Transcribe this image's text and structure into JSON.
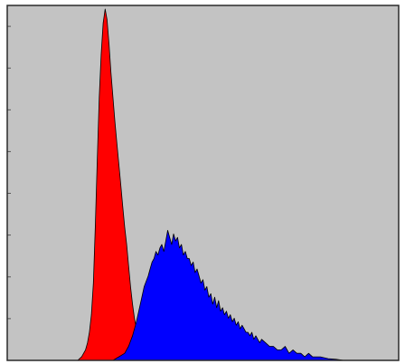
{
  "chart_data": {
    "type": "area",
    "title": "",
    "xlabel": "",
    "ylabel": "",
    "xlim": [
      0,
      100
    ],
    "ylim": [
      0,
      100
    ],
    "grid": false,
    "legend": "none",
    "background_color": "#c3c3c3",
    "frame_color": "#2a2a2a",
    "y_tick_count": 8,
    "series": [
      {
        "color": "#ff0000",
        "x": [
          18.0,
          19.0,
          20.0,
          20.5,
          21.0,
          21.5,
          22.0,
          22.5,
          23.0,
          23.5,
          24.0,
          24.5,
          25.0,
          25.5,
          26.0,
          26.5,
          27.0,
          27.5,
          28.0,
          28.5,
          29.0,
          29.5,
          30.0,
          30.5,
          31.0,
          31.5,
          32.0,
          32.5,
          33.0,
          33.5,
          34.0,
          34.5,
          35.0,
          36.0,
          37.0
        ],
        "y": [
          0,
          1,
          3,
          5,
          8,
          13,
          22,
          38,
          57,
          75,
          87,
          96,
          100,
          97,
          90,
          82,
          75,
          68,
          62,
          56,
          50,
          44,
          38,
          33,
          27,
          21,
          16,
          12,
          9,
          7,
          5,
          3,
          2,
          1,
          0
        ]
      },
      {
        "color": "#0000ff",
        "x": [
          27.0,
          28.5,
          30.0,
          31.0,
          32.0,
          33.0,
          34.0,
          35.0,
          36.0,
          36.5,
          37.0,
          37.5,
          38.0,
          38.5,
          39.0,
          39.5,
          40.0,
          40.5,
          41.0,
          41.5,
          42.0,
          42.5,
          43.0,
          43.5,
          44.0,
          44.5,
          45.0,
          45.5,
          46.0,
          46.5,
          47.0,
          47.5,
          48.0,
          48.5,
          49.0,
          49.5,
          50.0,
          50.5,
          51.0,
          51.5,
          52.0,
          52.5,
          53.0,
          53.5,
          54.0,
          54.5,
          55.0,
          55.5,
          56.0,
          56.5,
          57.0,
          57.5,
          58.0,
          58.5,
          59.0,
          59.5,
          60.0,
          60.5,
          61.0,
          61.5,
          62.0,
          62.5,
          63.0,
          63.5,
          64.0,
          64.5,
          65.0,
          66.0,
          67.0,
          68.0,
          69.0,
          70.0,
          71.0,
          72.0,
          73.0,
          74.0,
          75.0,
          76.0,
          77.0,
          78.0,
          79.0,
          80.0,
          82.0,
          84.0,
          86.0
        ],
        "y": [
          0,
          1,
          2,
          4,
          7,
          11,
          16,
          21,
          24,
          26,
          28,
          29,
          31,
          30,
          32,
          33,
          31,
          34,
          37,
          35,
          33,
          36,
          34,
          35,
          32,
          33,
          30,
          31,
          29,
          29,
          27,
          28,
          25,
          26,
          24,
          22,
          23,
          20,
          21,
          18,
          19,
          16,
          18,
          15,
          17,
          14,
          15,
          13,
          14,
          12,
          13,
          11,
          12,
          10,
          11,
          9,
          10,
          9,
          8,
          8,
          7,
          8,
          6,
          7,
          6,
          5,
          6,
          5,
          4,
          4,
          3,
          3,
          4,
          2,
          3,
          2,
          2,
          1,
          2,
          1,
          1,
          1,
          0.5,
          0.3,
          0
        ]
      }
    ]
  }
}
